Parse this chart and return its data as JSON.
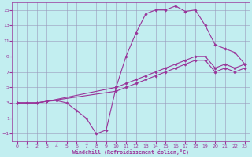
{
  "xlabel": "Windchill (Refroidissement éolien,°C)",
  "background_color": "#c2eef0",
  "grid_color": "#9999bb",
  "line_color": "#993399",
  "xlim": [
    -0.5,
    23.5
  ],
  "ylim": [
    -2,
    16
  ],
  "xticks": [
    0,
    1,
    2,
    3,
    4,
    5,
    6,
    7,
    8,
    9,
    10,
    11,
    12,
    13,
    14,
    15,
    16,
    17,
    18,
    19,
    20,
    21,
    22,
    23
  ],
  "yticks": [
    -1,
    1,
    3,
    5,
    7,
    9,
    11,
    13,
    15
  ],
  "curve1_x": [
    0,
    1,
    2,
    3,
    4,
    5,
    6,
    7,
    8,
    9,
    10,
    11,
    12,
    13,
    14,
    15,
    16,
    17,
    18,
    19,
    20,
    21,
    22,
    23
  ],
  "curve1_y": [
    3,
    3,
    3,
    3.2,
    3.3,
    3,
    2,
    1,
    -1,
    -0.5,
    5,
    9,
    12,
    14.5,
    15,
    15,
    15.5,
    14.8,
    15,
    13,
    10.5,
    10,
    9.5,
    8
  ],
  "curve2_x": [
    0,
    2,
    3,
    10,
    11,
    12,
    13,
    14,
    15,
    16,
    17,
    18,
    19,
    20,
    21,
    22,
    23
  ],
  "curve2_y": [
    3,
    3,
    3.2,
    5,
    5.5,
    6,
    6.5,
    7,
    7.5,
    8,
    8.5,
    9,
    9,
    7.5,
    8,
    7.5,
    8
  ],
  "curve3_x": [
    0,
    2,
    3,
    10,
    11,
    12,
    13,
    14,
    15,
    16,
    17,
    18,
    19,
    20,
    21,
    22,
    23
  ],
  "curve3_y": [
    3,
    3,
    3.2,
    4.5,
    5,
    5.5,
    6,
    6.5,
    7,
    7.5,
    8,
    8.5,
    8.5,
    7,
    7.5,
    7,
    7.5
  ]
}
